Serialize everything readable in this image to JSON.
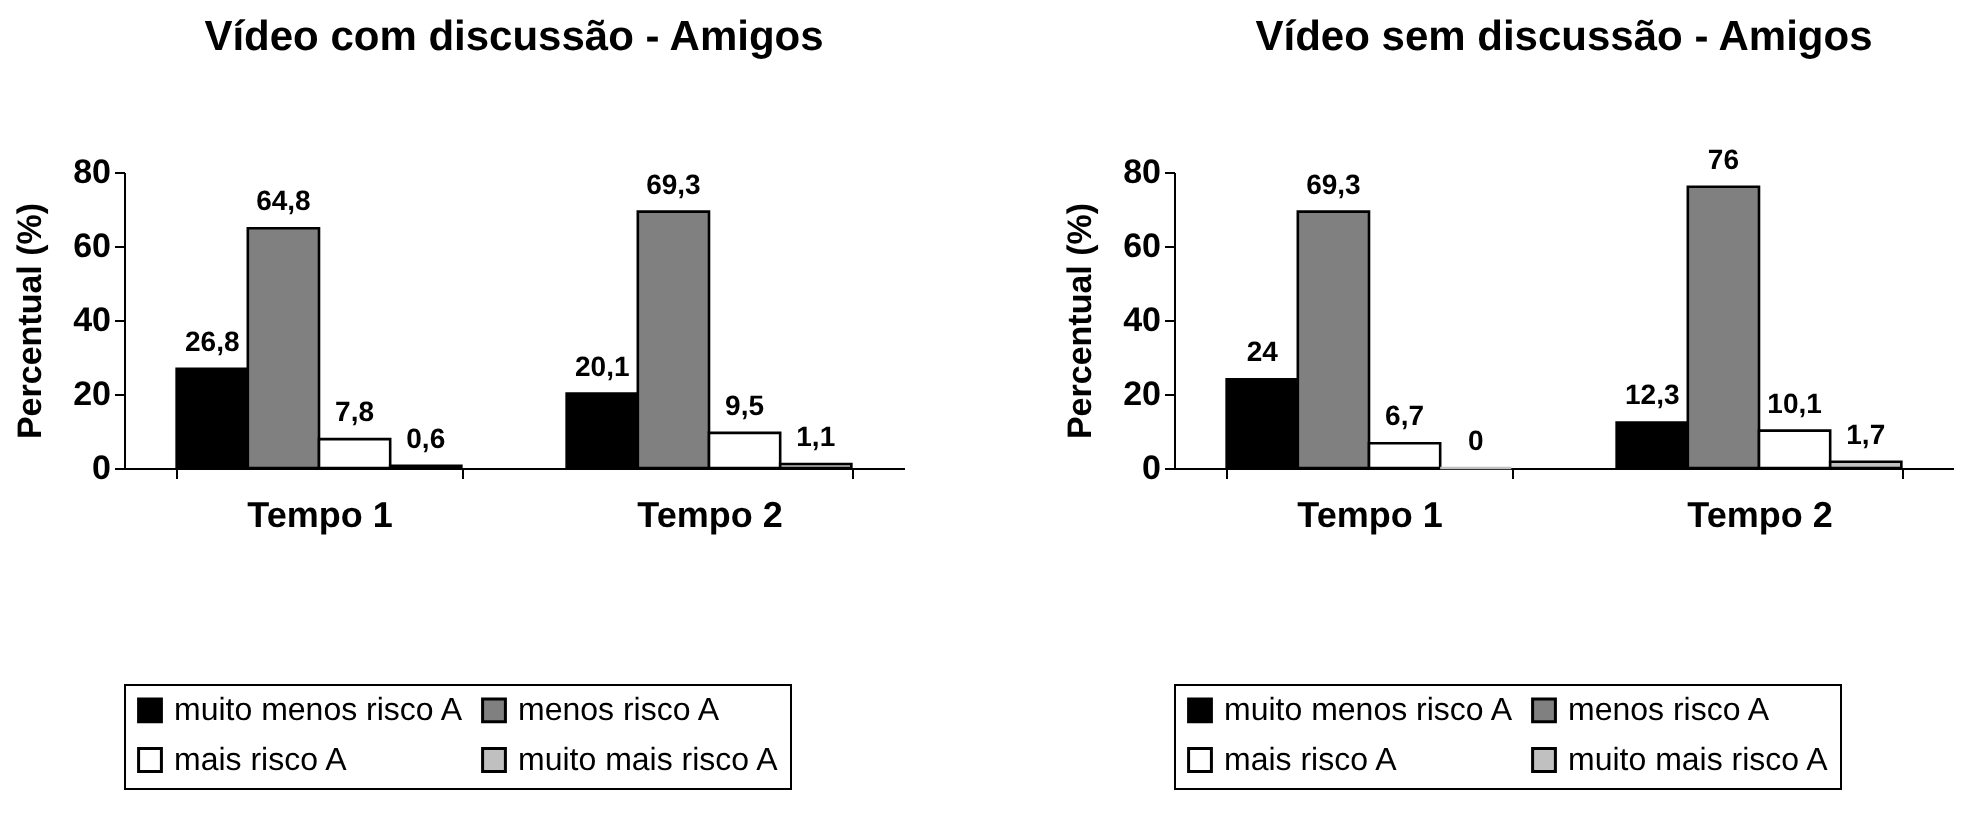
{
  "chart_data": [
    {
      "type": "bar",
      "title": "Vídeo com discussão - Amigos",
      "ylabel": "Percentual (%)",
      "categories": [
        "Tempo 1",
        "Tempo 2"
      ],
      "ylim": [
        0,
        80
      ],
      "yticks": [
        0,
        20,
        40,
        60,
        80
      ],
      "grid": false,
      "legend": "bottom",
      "series": [
        {
          "name": "muito menos risco A",
          "color": "#000000",
          "values": [
            26.8,
            20.1
          ],
          "value_labels": [
            "26,8",
            "20,1"
          ]
        },
        {
          "name": "menos risco A",
          "color": "#808080",
          "values": [
            64.8,
            69.3
          ],
          "value_labels": [
            "64,8",
            "69,3"
          ]
        },
        {
          "name": "mais risco A",
          "color": "#ffffff",
          "values": [
            7.8,
            9.5
          ],
          "value_labels": [
            "7,8",
            "9,5"
          ]
        },
        {
          "name": "muito mais risco A",
          "color": "#c0c0c0",
          "values": [
            0.6,
            1.1
          ],
          "value_labels": [
            "0,6",
            "1,1"
          ]
        }
      ]
    },
    {
      "type": "bar",
      "title": "Vídeo sem discussão - Amigos",
      "ylabel": "Percentual (%)",
      "categories": [
        "Tempo 1",
        "Tempo 2"
      ],
      "ylim": [
        0,
        80
      ],
      "yticks": [
        0,
        20,
        40,
        60,
        80
      ],
      "grid": false,
      "legend": "bottom",
      "series": [
        {
          "name": "muito menos risco A",
          "color": "#000000",
          "values": [
            24,
            12.3
          ],
          "value_labels": [
            "24",
            "12,3"
          ]
        },
        {
          "name": "menos risco A",
          "color": "#808080",
          "values": [
            69.3,
            76
          ],
          "value_labels": [
            "69,3",
            "76"
          ]
        },
        {
          "name": "mais risco A",
          "color": "#ffffff",
          "values": [
            6.7,
            10.1
          ],
          "value_labels": [
            "6,7",
            "10,1"
          ]
        },
        {
          "name": "muito mais risco A",
          "color": "#c0c0c0",
          "values": [
            0,
            1.7
          ],
          "value_labels": [
            "0",
            "1,7"
          ]
        }
      ]
    }
  ]
}
